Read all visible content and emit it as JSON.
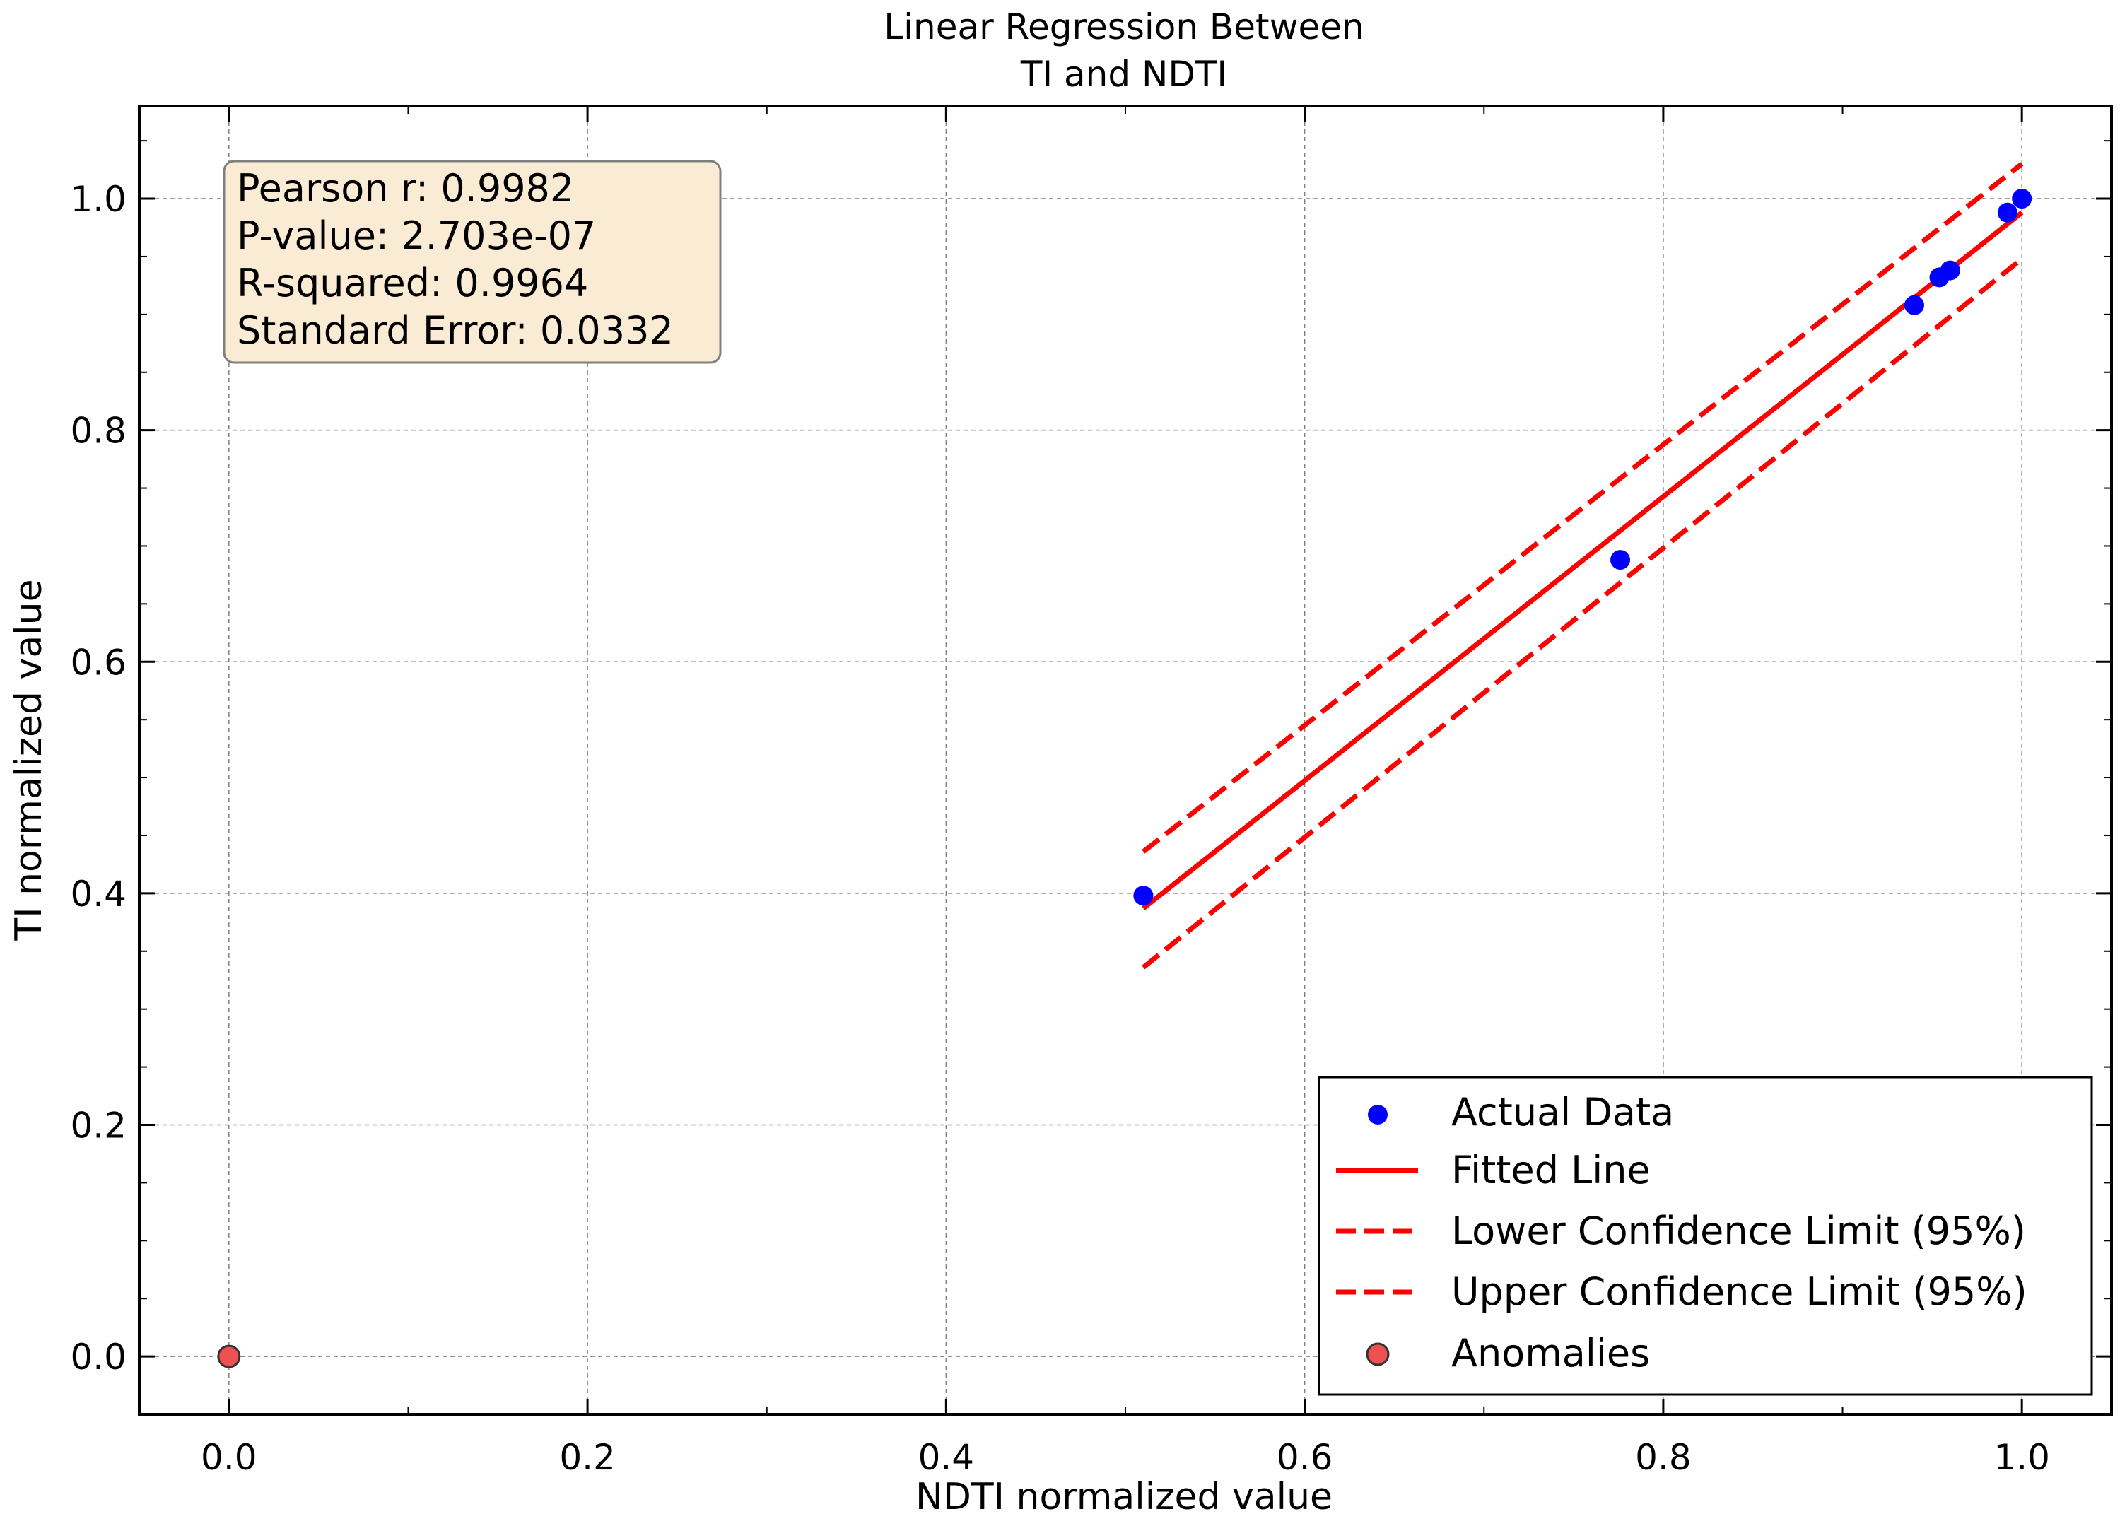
{
  "chart_data": {
    "type": "scatter",
    "title": [
      "Linear Regression Between",
      "TI and NDTI"
    ],
    "xlabel": "NDTI normalized value",
    "ylabel": "TI normalized value",
    "xlim": [
      -0.05,
      1.05
    ],
    "ylim": [
      -0.05,
      1.08
    ],
    "x_ticks": [
      0.0,
      0.2,
      0.4,
      0.6,
      0.8,
      1.0
    ],
    "y_ticks": [
      0.0,
      0.2,
      0.4,
      0.6,
      0.8,
      1.0
    ],
    "x_tick_labels": [
      "0.0",
      "0.2",
      "0.4",
      "0.6",
      "0.8",
      "1.0"
    ],
    "y_tick_labels": [
      "0.0",
      "0.2",
      "0.4",
      "0.6",
      "0.8",
      "1.0"
    ],
    "grid": true,
    "stats_lines": [
      "Pearson r: 0.9982",
      "P-value: 2.703e-07",
      "R-squared: 0.9964",
      "Standard Error: 0.0332"
    ],
    "series": [
      {
        "name": "Actual Data",
        "kind": "scatter",
        "color": "#0000ff",
        "points": [
          [
            0.51,
            0.398
          ],
          [
            0.776,
            0.688
          ],
          [
            0.94,
            0.908
          ],
          [
            0.954,
            0.932
          ],
          [
            0.96,
            0.938
          ],
          [
            0.992,
            0.988
          ],
          [
            1.0,
            1.0
          ]
        ]
      },
      {
        "name": "Fitted Line",
        "kind": "line",
        "color": "#ff0000",
        "points": [
          [
            0.51,
            0.387
          ],
          [
            1.0,
            0.988
          ]
        ]
      },
      {
        "name": "Lower Confidence Limit (95%)",
        "kind": "dashed",
        "color": "#ff0000",
        "points": [
          [
            0.51,
            0.336
          ],
          [
            1.0,
            0.948
          ]
        ]
      },
      {
        "name": "Upper Confidence Limit (95%)",
        "kind": "dashed",
        "color": "#ff0000",
        "points": [
          [
            0.51,
            0.436
          ],
          [
            1.0,
            1.03
          ]
        ]
      },
      {
        "name": "Anomalies",
        "kind": "scatter-anomaly",
        "color": "#f05050",
        "points": [
          [
            0.0,
            0.0
          ]
        ]
      }
    ],
    "legend_position": "lower-right",
    "colors": {
      "stats_box_fill": "#faebd4",
      "stats_box_edge": "#7f7f7f",
      "grid": "#808080"
    }
  }
}
